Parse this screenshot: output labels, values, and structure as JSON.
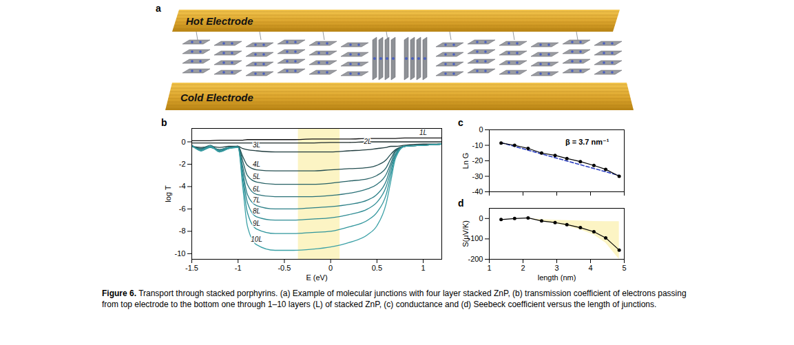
{
  "figure": {
    "panel_a": {
      "letter": "a",
      "top_label": "Hot Electrode",
      "bottom_label": "Cold Electrode"
    },
    "caption": {
      "label": "Figure 6.",
      "text": "Transport through stacked porphyrins. (a) Example of molecular junctions with four layer stacked ZnP, (b) transmission coefficient of electrons passing from top electrode to the bottom one through 1–10 layers (L) of stacked ZnP, (c) conductance and (d) Seebeck coefficient versus the length of junctions."
    }
  },
  "chart_data": [
    {
      "letter": "b",
      "type": "line",
      "xlabel": "E (eV)",
      "ylabel": "log T",
      "x": [
        -1.5,
        -1.4,
        -1.3,
        -1.2,
        -1.1,
        -1.0,
        -0.95,
        -0.9,
        -0.8,
        -0.6,
        -0.4,
        -0.2,
        0,
        0.2,
        0.4,
        0.5,
        0.6,
        0.65,
        0.7,
        0.8,
        1.0,
        1.2
      ],
      "series": [
        {
          "name": "1L",
          "color": "#111111",
          "values": [
            0.1,
            0.1,
            0.1,
            0.15,
            0.15,
            0.15,
            0.15,
            0.2,
            0.2,
            0.2,
            0.2,
            0.25,
            0.25,
            0.25,
            0.3,
            0.3,
            0.3,
            0.3,
            0.3,
            0.35,
            0.35,
            0.35
          ]
        },
        {
          "name": "2L",
          "color": "#1a2828",
          "values": [
            -0.1,
            -0.1,
            -0.1,
            -0.1,
            -0.1,
            -0.1,
            -0.1,
            -0.1,
            -0.1,
            -0.1,
            -0.1,
            -0.1,
            -0.05,
            -0.05,
            0,
            0,
            0,
            0,
            0,
            0,
            0,
            0
          ]
        },
        {
          "name": "3L",
          "color": "#1f3a3c",
          "values": [
            -0.4,
            -0.5,
            -0.4,
            -0.5,
            -0.4,
            -0.4,
            -0.6,
            -0.7,
            -0.8,
            -0.9,
            -0.9,
            -0.9,
            -0.9,
            -0.8,
            -0.7,
            -0.6,
            -0.5,
            -0.4,
            -0.4,
            -0.3,
            -0.2,
            -0.2
          ]
        },
        {
          "name": "4L",
          "color": "#234d50",
          "values": [
            -0.4,
            -0.6,
            -0.5,
            -0.7,
            -0.5,
            -0.4,
            -1.3,
            -2.1,
            -2.5,
            -2.6,
            -2.6,
            -2.6,
            -2.5,
            -2.4,
            -2.3,
            -2.1,
            -1.6,
            -1.1,
            -0.7,
            -0.4,
            -0.3,
            -0.2
          ]
        },
        {
          "name": "5L",
          "color": "#266064",
          "values": [
            -0.3,
            -0.7,
            -0.4,
            -0.8,
            -0.5,
            -0.4,
            -1.7,
            -3.0,
            -3.6,
            -3.8,
            -3.8,
            -3.8,
            -3.7,
            -3.5,
            -3.3,
            -3.0,
            -2.3,
            -1.5,
            -0.8,
            -0.4,
            -0.3,
            -0.2
          ]
        },
        {
          "name": "6L",
          "color": "#297077",
          "values": [
            -0.4,
            -0.6,
            -0.3,
            -0.8,
            -0.6,
            -0.4,
            -2.2,
            -3.8,
            -4.7,
            -4.9,
            -4.9,
            -4.9,
            -4.8,
            -4.6,
            -4.2,
            -3.8,
            -2.9,
            -1.9,
            -0.9,
            -0.4,
            -0.3,
            -0.2
          ]
        },
        {
          "name": "7L",
          "color": "#2b7f87",
          "values": [
            -0.3,
            -0.8,
            -0.5,
            -0.7,
            -0.5,
            -0.5,
            -2.6,
            -4.7,
            -5.7,
            -6.0,
            -6.0,
            -5.9,
            -5.8,
            -5.6,
            -5.2,
            -4.7,
            -3.5,
            -2.2,
            -1.1,
            -0.4,
            -0.3,
            -0.2
          ]
        },
        {
          "name": "8L",
          "color": "#2d8b93",
          "values": [
            -0.4,
            -0.7,
            -0.4,
            -0.9,
            -0.6,
            -0.5,
            -3.0,
            -5.4,
            -6.7,
            -7.0,
            -7.0,
            -6.9,
            -6.8,
            -6.5,
            -6.0,
            -5.4,
            -4.0,
            -2.6,
            -1.2,
            -0.4,
            -0.3,
            -0.2
          ]
        },
        {
          "name": "9L",
          "color": "#2f959c",
          "values": [
            -0.3,
            -0.8,
            -0.5,
            -0.8,
            -0.5,
            -0.5,
            -3.4,
            -6.3,
            -7.8,
            -8.2,
            -8.2,
            -8.1,
            -8.0,
            -7.6,
            -7.0,
            -6.3,
            -4.7,
            -3.0,
            -1.3,
            -0.4,
            -0.3,
            -0.2
          ]
        },
        {
          "name": "10L",
          "color": "#3aa0a6",
          "values": [
            -0.3,
            -0.8,
            -0.4,
            -0.9,
            -0.6,
            -0.5,
            -4.0,
            -7.5,
            -9.2,
            -9.7,
            -9.7,
            -9.6,
            -9.4,
            -9.0,
            -8.3,
            -7.5,
            -5.5,
            -3.5,
            -1.5,
            -0.4,
            -0.3,
            -0.2
          ]
        }
      ],
      "xlim": [
        -1.5,
        1.2
      ],
      "xticks": [
        -1.5,
        -1,
        -0.5,
        0,
        0.5,
        1
      ],
      "ylim": [
        -10.5,
        1.2
      ],
      "yticks": [
        0,
        -2,
        -4,
        -6,
        -8,
        -10
      ],
      "shaded": {
        "x": [
          -0.35,
          0.1
        ],
        "color": "#fcf4c4"
      }
    },
    {
      "letter": "c",
      "type": "line",
      "ylabel": "Ln G",
      "x": [
        1.35,
        1.75,
        2.15,
        2.55,
        2.95,
        3.3,
        3.7,
        4.1,
        4.45,
        4.85
      ],
      "values": [
        -8.5,
        -10,
        -12,
        -15,
        -16.5,
        -18.5,
        -20.5,
        -23,
        -25.5,
        -30
      ],
      "color": "#000000",
      "marker": "circle",
      "fit": {
        "x": [
          1.35,
          4.85
        ],
        "values": [
          -8.3,
          -29.5
        ],
        "color": "#2b3fc0",
        "line_style": "dashed"
      },
      "annotation": "β = 3.7 nm⁻¹",
      "xlim": [
        1,
        5
      ],
      "xticks": [
        1,
        2,
        3,
        4,
        5
      ],
      "ylim": [
        -40,
        0
      ],
      "yticks": [
        0,
        -10,
        -20,
        -30,
        -40
      ],
      "tick_labels": "y"
    },
    {
      "letter": "d",
      "type": "line",
      "xlabel": "length (nm)",
      "ylabel": "S(μV/K)",
      "x": [
        1.35,
        1.75,
        2.15,
        2.55,
        2.95,
        3.3,
        3.7,
        4.1,
        4.45,
        4.85
      ],
      "values": [
        -5,
        0,
        3,
        -12,
        -20,
        -30,
        -45,
        -65,
        -95,
        -155
      ],
      "color": "#000000",
      "marker": "circle",
      "band": {
        "x": [
          2.15,
          2.55,
          2.95,
          3.3,
          3.7,
          4.1,
          4.45,
          4.85
        ],
        "lower": [
          0,
          -15,
          -25,
          -38,
          -55,
          -80,
          -120,
          -200
        ],
        "upper": [
          0,
          -5,
          -8,
          -10,
          -12,
          -14,
          -15,
          -15
        ],
        "color": "#fcf4c4"
      },
      "xlim": [
        1,
        5
      ],
      "xticks": [
        1,
        2,
        3,
        4,
        5
      ],
      "ylim": [
        -200,
        50
      ],
      "yticks": [
        0,
        -100,
        -200
      ]
    }
  ]
}
